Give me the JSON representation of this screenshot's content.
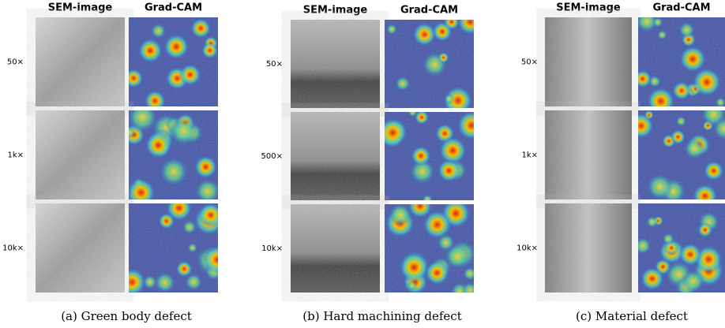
{
  "panels": [
    {
      "headers": [
        "SEM-image",
        "Grad-CAM"
      ],
      "rows": [
        "50×",
        "1k×",
        "10k×"
      ],
      "caption": "(a) Green body defect"
    },
    {
      "headers": [
        "SEM-image",
        "Grad-CAM"
      ],
      "rows": [
        "50×",
        "500×",
        "10k×"
      ],
      "caption": "(b) Hard machining defect"
    },
    {
      "headers": [
        "SEM-image",
        "Grad-CAM"
      ],
      "rows": [
        "50×",
        "1k×",
        "10k×"
      ],
      "caption": "(c) Material defect"
    }
  ]
}
